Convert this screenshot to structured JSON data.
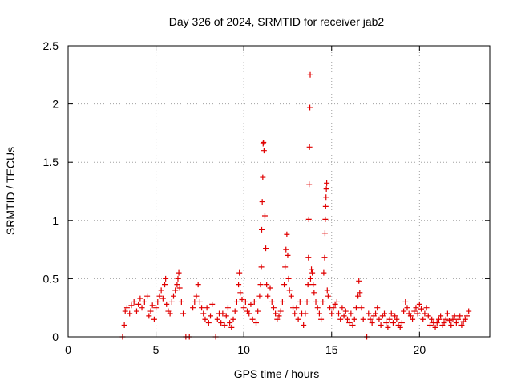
{
  "chart_data": {
    "type": "scatter",
    "title": "Day 326 of 2024, SRMTID for receiver jab2",
    "xlabel": "GPS time / hours",
    "ylabel": "SRMTID / TECUs",
    "xlim": [
      0,
      24
    ],
    "ylim": [
      0,
      2.5
    ],
    "xticks": [
      0,
      5,
      10,
      15,
      20
    ],
    "xtick_labels": [
      "0",
      "5",
      "10",
      "15",
      "20"
    ],
    "yticks": [
      0,
      0.5,
      1,
      1.5,
      2,
      2.5
    ],
    "ytick_labels": [
      "0",
      "0.5",
      "1",
      "1.5",
      "2",
      "2.5"
    ],
    "grid": true,
    "marker": "+",
    "color": "#e00000",
    "series": [
      {
        "name": "SRMTID",
        "points": [
          [
            3.1,
            0.0
          ],
          [
            3.2,
            0.1
          ],
          [
            3.25,
            0.22
          ],
          [
            3.35,
            0.25
          ],
          [
            3.5,
            0.2
          ],
          [
            3.6,
            0.27
          ],
          [
            3.75,
            0.3
          ],
          [
            3.9,
            0.22
          ],
          [
            4.0,
            0.28
          ],
          [
            4.1,
            0.33
          ],
          [
            4.2,
            0.25
          ],
          [
            4.35,
            0.3
          ],
          [
            4.5,
            0.35
          ],
          [
            4.6,
            0.18
          ],
          [
            4.7,
            0.22
          ],
          [
            4.8,
            0.27
          ],
          [
            4.9,
            0.15
          ],
          [
            5.0,
            0.25
          ],
          [
            5.1,
            0.3
          ],
          [
            5.2,
            0.35
          ],
          [
            5.3,
            0.4
          ],
          [
            5.4,
            0.33
          ],
          [
            5.5,
            0.45
          ],
          [
            5.55,
            0.5
          ],
          [
            5.6,
            0.28
          ],
          [
            5.7,
            0.22
          ],
          [
            5.8,
            0.2
          ],
          [
            5.9,
            0.3
          ],
          [
            6.0,
            0.35
          ],
          [
            6.1,
            0.4
          ],
          [
            6.2,
            0.45
          ],
          [
            6.25,
            0.5
          ],
          [
            6.3,
            0.55
          ],
          [
            6.35,
            0.42
          ],
          [
            6.45,
            0.3
          ],
          [
            6.55,
            0.2
          ],
          [
            6.7,
            0.0
          ],
          [
            6.9,
            0.0
          ],
          [
            7.1,
            0.25
          ],
          [
            7.2,
            0.3
          ],
          [
            7.3,
            0.35
          ],
          [
            7.4,
            0.45
          ],
          [
            7.5,
            0.3
          ],
          [
            7.6,
            0.25
          ],
          [
            7.7,
            0.2
          ],
          [
            7.8,
            0.15
          ],
          [
            7.9,
            0.25
          ],
          [
            8.0,
            0.12
          ],
          [
            8.1,
            0.18
          ],
          [
            8.2,
            0.28
          ],
          [
            8.4,
            0.0
          ],
          [
            8.5,
            0.15
          ],
          [
            8.6,
            0.2
          ],
          [
            8.7,
            0.12
          ],
          [
            8.8,
            0.2
          ],
          [
            8.9,
            0.1
          ],
          [
            9.0,
            0.18
          ],
          [
            9.1,
            0.25
          ],
          [
            9.2,
            0.12
          ],
          [
            9.3,
            0.08
          ],
          [
            9.4,
            0.15
          ],
          [
            9.5,
            0.22
          ],
          [
            9.6,
            0.3
          ],
          [
            9.7,
            0.45
          ],
          [
            9.75,
            0.55
          ],
          [
            9.8,
            0.38
          ],
          [
            9.9,
            0.32
          ],
          [
            10.0,
            0.25
          ],
          [
            10.1,
            0.3
          ],
          [
            10.2,
            0.22
          ],
          [
            10.3,
            0.2
          ],
          [
            10.4,
            0.28
          ],
          [
            10.5,
            0.15
          ],
          [
            10.6,
            0.3
          ],
          [
            10.7,
            0.12
          ],
          [
            10.8,
            0.22
          ],
          [
            10.9,
            0.35
          ],
          [
            10.95,
            0.45
          ],
          [
            11.0,
            0.6
          ],
          [
            11.02,
            0.92
          ],
          [
            11.05,
            1.16
          ],
          [
            11.08,
            1.37
          ],
          [
            11.1,
            1.66
          ],
          [
            11.12,
            1.67
          ],
          [
            11.15,
            1.6
          ],
          [
            11.2,
            1.04
          ],
          [
            11.25,
            0.76
          ],
          [
            11.3,
            0.45
          ],
          [
            11.35,
            0.35
          ],
          [
            11.5,
            0.42
          ],
          [
            11.6,
            0.3
          ],
          [
            11.7,
            0.25
          ],
          [
            11.8,
            0.2
          ],
          [
            11.9,
            0.15
          ],
          [
            12.0,
            0.18
          ],
          [
            12.1,
            0.22
          ],
          [
            12.2,
            0.3
          ],
          [
            12.3,
            0.45
          ],
          [
            12.35,
            0.6
          ],
          [
            12.4,
            0.75
          ],
          [
            12.45,
            0.88
          ],
          [
            12.5,
            0.7
          ],
          [
            12.55,
            0.5
          ],
          [
            12.6,
            0.4
          ],
          [
            12.7,
            0.35
          ],
          [
            12.8,
            0.25
          ],
          [
            12.9,
            0.2
          ],
          [
            13.0,
            0.25
          ],
          [
            13.1,
            0.15
          ],
          [
            13.2,
            0.3
          ],
          [
            13.3,
            0.2
          ],
          [
            13.4,
            0.1
          ],
          [
            13.5,
            0.2
          ],
          [
            13.6,
            0.3
          ],
          [
            13.65,
            0.45
          ],
          [
            13.68,
            0.68
          ],
          [
            13.7,
            1.01
          ],
          [
            13.72,
            1.31
          ],
          [
            13.74,
            1.63
          ],
          [
            13.76,
            1.97
          ],
          [
            13.78,
            2.25
          ],
          [
            13.8,
            0.5
          ],
          [
            13.85,
            0.58
          ],
          [
            13.9,
            0.55
          ],
          [
            13.95,
            0.45
          ],
          [
            14.0,
            0.38
          ],
          [
            14.1,
            0.3
          ],
          [
            14.2,
            0.25
          ],
          [
            14.3,
            0.2
          ],
          [
            14.4,
            0.15
          ],
          [
            14.5,
            0.3
          ],
          [
            14.55,
            0.55
          ],
          [
            14.6,
            0.68
          ],
          [
            14.62,
            0.89
          ],
          [
            14.64,
            1.01
          ],
          [
            14.66,
            1.12
          ],
          [
            14.68,
            1.2
          ],
          [
            14.7,
            1.27
          ],
          [
            14.72,
            1.32
          ],
          [
            14.75,
            0.4
          ],
          [
            14.8,
            0.35
          ],
          [
            14.9,
            0.25
          ],
          [
            15.0,
            0.2
          ],
          [
            15.1,
            0.25
          ],
          [
            15.2,
            0.28
          ],
          [
            15.3,
            0.3
          ],
          [
            15.4,
            0.2
          ],
          [
            15.5,
            0.15
          ],
          [
            15.6,
            0.25
          ],
          [
            15.7,
            0.18
          ],
          [
            15.8,
            0.22
          ],
          [
            15.9,
            0.15
          ],
          [
            16.0,
            0.12
          ],
          [
            16.1,
            0.2
          ],
          [
            16.2,
            0.1
          ],
          [
            16.3,
            0.15
          ],
          [
            16.4,
            0.25
          ],
          [
            16.5,
            0.35
          ],
          [
            16.55,
            0.48
          ],
          [
            16.6,
            0.38
          ],
          [
            16.7,
            0.25
          ],
          [
            16.8,
            0.15
          ],
          [
            17.0,
            0.0
          ],
          [
            17.1,
            0.2
          ],
          [
            17.2,
            0.15
          ],
          [
            17.3,
            0.12
          ],
          [
            17.4,
            0.18
          ],
          [
            17.5,
            0.2
          ],
          [
            17.6,
            0.25
          ],
          [
            17.7,
            0.15
          ],
          [
            17.8,
            0.1
          ],
          [
            17.9,
            0.18
          ],
          [
            18.0,
            0.2
          ],
          [
            18.1,
            0.12
          ],
          [
            18.2,
            0.08
          ],
          [
            18.3,
            0.15
          ],
          [
            18.4,
            0.2
          ],
          [
            18.5,
            0.12
          ],
          [
            18.6,
            0.18
          ],
          [
            18.7,
            0.15
          ],
          [
            18.8,
            0.1
          ],
          [
            18.9,
            0.08
          ],
          [
            19.0,
            0.12
          ],
          [
            19.1,
            0.22
          ],
          [
            19.2,
            0.3
          ],
          [
            19.3,
            0.25
          ],
          [
            19.4,
            0.2
          ],
          [
            19.5,
            0.18
          ],
          [
            19.6,
            0.15
          ],
          [
            19.7,
            0.22
          ],
          [
            19.8,
            0.25
          ],
          [
            19.9,
            0.2
          ],
          [
            20.0,
            0.28
          ],
          [
            20.1,
            0.24
          ],
          [
            20.2,
            0.15
          ],
          [
            20.3,
            0.2
          ],
          [
            20.4,
            0.25
          ],
          [
            20.5,
            0.18
          ],
          [
            20.6,
            0.1
          ],
          [
            20.7,
            0.15
          ],
          [
            20.8,
            0.12
          ],
          [
            20.9,
            0.08
          ],
          [
            21.0,
            0.12
          ],
          [
            21.1,
            0.15
          ],
          [
            21.2,
            0.18
          ],
          [
            21.3,
            0.1
          ],
          [
            21.4,
            0.12
          ],
          [
            21.5,
            0.15
          ],
          [
            21.6,
            0.2
          ],
          [
            21.7,
            0.14
          ],
          [
            21.8,
            0.1
          ],
          [
            21.9,
            0.15
          ],
          [
            22.0,
            0.18
          ],
          [
            22.1,
            0.12
          ],
          [
            22.2,
            0.15
          ],
          [
            22.3,
            0.18
          ],
          [
            22.4,
            0.1
          ],
          [
            22.5,
            0.13
          ],
          [
            22.6,
            0.15
          ],
          [
            22.7,
            0.18
          ],
          [
            22.8,
            0.22
          ]
        ]
      }
    ]
  }
}
